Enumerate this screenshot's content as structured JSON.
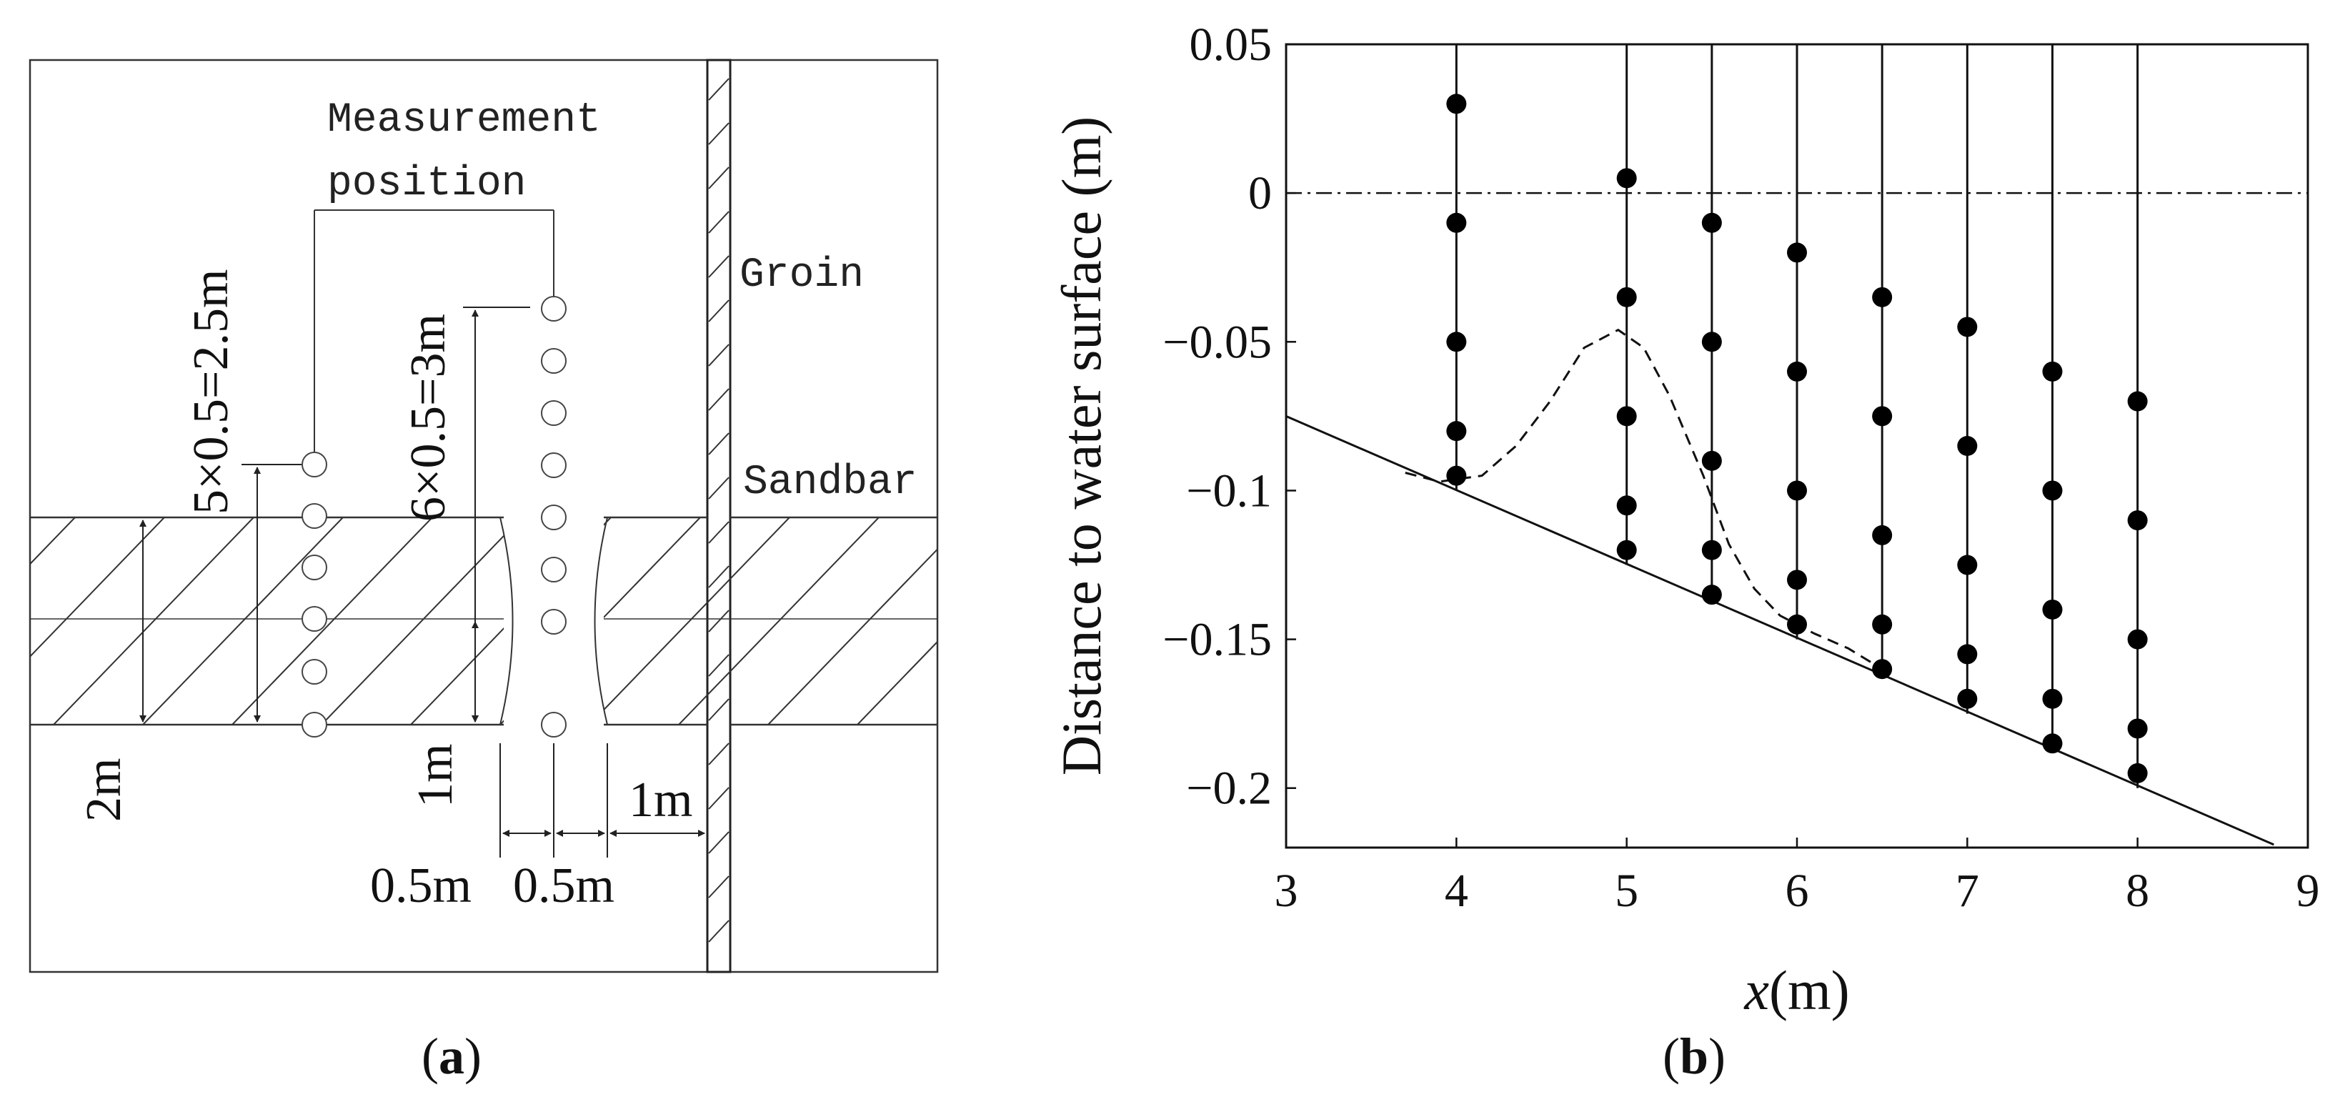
{
  "panel_a": {
    "label_measurement_1": "Measurement",
    "label_measurement_2": "position",
    "label_groin": "Groin",
    "label_sandbar": "Sandbar",
    "dim_left_vertical": "5×0.5=2.5m",
    "dim_mid_vertical": "6×0.5=3m",
    "dim_2m": "2m",
    "dim_1m_vertical": "1m",
    "dim_1m_horizontal": "1m",
    "dim_05m_left": "0.5m",
    "dim_05m_right": "0.5m",
    "caption_open": "(",
    "caption_letter": "a",
    "caption_close": ")"
  },
  "panel_b": {
    "caption_open": "(",
    "caption_letter": "b",
    "caption_close": ")"
  },
  "chart_data": {
    "type": "scatter",
    "title": "",
    "xlabel_italic": "x",
    "xlabel_unit": "(m)",
    "ylabel": "Distance to water surface (m)",
    "xlim": [
      3,
      9
    ],
    "ylim": [
      -0.22,
      0.05
    ],
    "x_ticks": [
      3,
      4,
      5,
      6,
      7,
      8,
      9
    ],
    "x_tick_labels": [
      "3",
      "4",
      "5",
      "6",
      "7",
      "8",
      "9"
    ],
    "y_ticks": [
      0.05,
      0,
      -0.05,
      -0.1,
      -0.15,
      -0.2
    ],
    "y_tick_labels": [
      "0.05",
      "0",
      "−0.05",
      "−0.1",
      "−0.15",
      "−0.2"
    ],
    "water_surface_y": 0,
    "bed_line": [
      [
        3,
        -0.075
      ],
      [
        8.8,
        -0.219
      ]
    ],
    "profiles": [
      {
        "x": 4,
        "bottom": -0.1,
        "points": [
          0.03,
          -0.01,
          -0.05,
          -0.08,
          -0.095
        ]
      },
      {
        "x": 5,
        "bottom": -0.125,
        "points": [
          0.005,
          -0.035,
          -0.075,
          -0.105,
          -0.12
        ]
      },
      {
        "x": 5.5,
        "bottom": -0.138,
        "points": [
          -0.01,
          -0.05,
          -0.09,
          -0.12,
          -0.135
        ]
      },
      {
        "x": 6,
        "bottom": -0.15,
        "points": [
          -0.02,
          -0.06,
          -0.1,
          -0.13,
          -0.145
        ]
      },
      {
        "x": 6.5,
        "bottom": -0.162,
        "points": [
          -0.035,
          -0.075,
          -0.115,
          -0.145,
          -0.16
        ]
      },
      {
        "x": 7,
        "bottom": -0.175,
        "points": [
          -0.045,
          -0.085,
          -0.125,
          -0.155,
          -0.17
        ]
      },
      {
        "x": 7.5,
        "bottom": -0.188,
        "points": [
          -0.06,
          -0.1,
          -0.14,
          -0.17,
          -0.185
        ]
      },
      {
        "x": 8,
        "bottom": -0.2,
        "points": [
          -0.07,
          -0.11,
          -0.15,
          -0.18,
          -0.195
        ]
      }
    ],
    "sandbar_profile": [
      [
        3.7,
        -0.094
      ],
      [
        3.9,
        -0.097
      ],
      [
        4.15,
        -0.095
      ],
      [
        4.35,
        -0.085
      ],
      [
        4.55,
        -0.07
      ],
      [
        4.75,
        -0.052
      ],
      [
        4.95,
        -0.046
      ],
      [
        5.1,
        -0.052
      ],
      [
        5.25,
        -0.068
      ],
      [
        5.45,
        -0.095
      ],
      [
        5.6,
        -0.118
      ],
      [
        5.75,
        -0.133
      ],
      [
        5.9,
        -0.142
      ],
      [
        6.1,
        -0.148
      ],
      [
        6.3,
        -0.153
      ],
      [
        6.5,
        -0.16
      ]
    ]
  }
}
